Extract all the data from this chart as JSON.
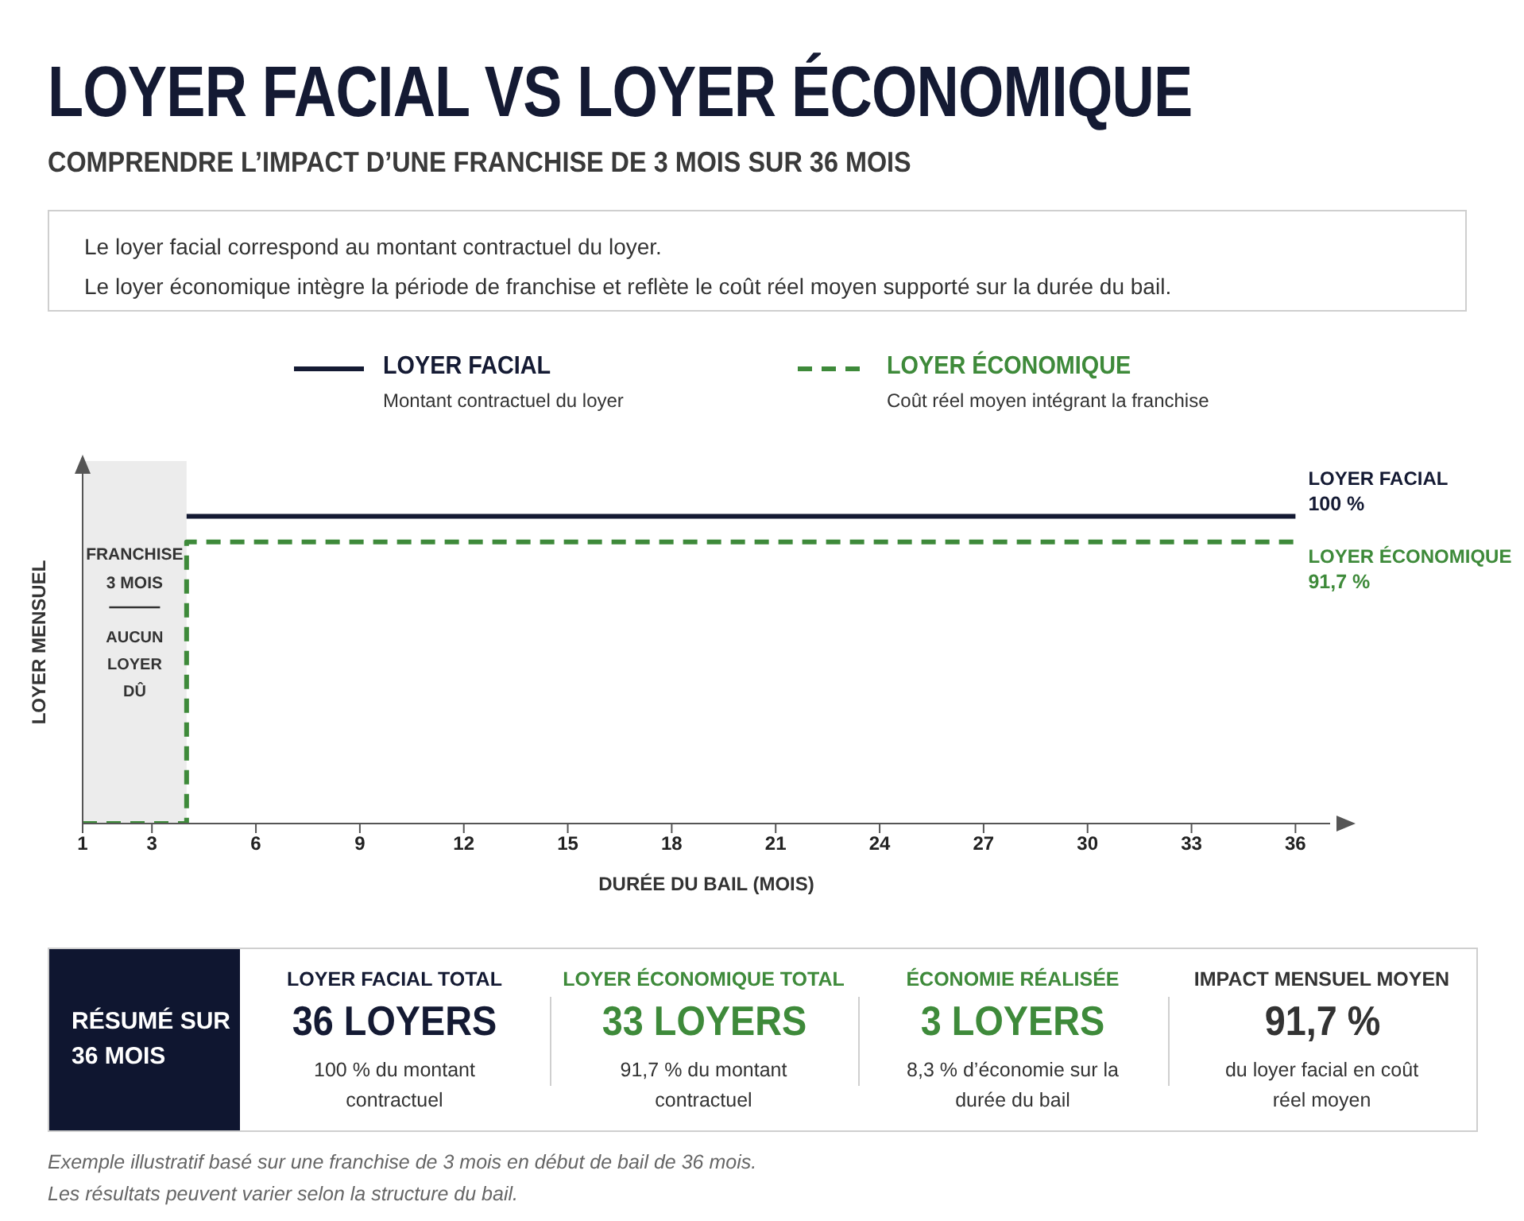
{
  "chart_data": [
    {
      "type": "other",
      "title": "LOYER FACIAL VS LOYER ÉCONOMIQUE",
      "subtitle": "COMPRENDRE L’IMPACT D’UNE FRANCHISE DE 3 MOIS SUR 36 MOIS",
      "annotations": [
        "Le loyer facial correspond au montant contractuel du loyer.",
        "Le loyer économique intègre la période de franchise et reflète le coût réel moyen supporté sur la durée du bail."
      ]
    },
    {
      "type": "line",
      "xlabel": "DURÉE DU BAIL (MOIS)",
      "ylabel": "LOYER MENSUEL",
      "xlim": [
        1,
        37
      ],
      "xticks": [
        1,
        3,
        6,
        9,
        12,
        15,
        18,
        21,
        24,
        27,
        30,
        33,
        36
      ],
      "ylim": [
        0,
        118
      ],
      "tick_labels": "x",
      "legend": "top",
      "series": [
        {
          "name": "LOYER FACIAL",
          "color": "#141a33",
          "line_style": "solid",
          "x": [
            4,
            36
          ],
          "values": [
            100,
            100
          ],
          "value_labels": [
            null,
            "100 %"
          ]
        },
        {
          "name": "LOYER ÉCONOMIQUE",
          "color": "#3e8a3a",
          "line_style": "dashed",
          "x": [
            1,
            4,
            4,
            36
          ],
          "values": [
            0,
            0,
            91.7,
            91.7
          ],
          "value_labels": [
            null,
            null,
            null,
            "91,7 %"
          ]
        }
      ],
      "bands": [
        {
          "axis": "x",
          "from": 1,
          "to": 4,
          "label": "FRANCHISE 3 MOIS",
          "color": "#ececec"
        }
      ],
      "annotations": [
        "Montant contractuel du loyer",
        "Coût réel moyen intégrant la franchise",
        "AUCUN LOYER DÛ",
        {
          "text": "LOYER FACIAL",
          "x": 36,
          "y": 100
        },
        {
          "text": "LOYER ÉCONOMIQUE",
          "x": 36,
          "y": 91.7
        }
      ]
    },
    {
      "type": "other",
      "title": "RÉSUMÉ SUR 36 MOIS",
      "colors": [
        "#141a33",
        "#3e8a3a",
        "#3e8a3a",
        "#333333"
      ],
      "annotations": [
        "LOYER FACIAL TOTAL",
        "36 LOYERS",
        "100 % du montant contractuel",
        "LOYER ÉCONOMIQUE TOTAL",
        "33 LOYERS",
        "91,7 % du montant contractuel",
        "ÉCONOMIE RÉALISÉE",
        "3 LOYERS",
        "8,3 % d’économie sur la durée du bail",
        "IMPACT MENSUEL MOYEN",
        "91,7 %",
        "du loyer facial en coût réel moyen",
        "Exemple illustratif basé sur une franchise de 3 mois en début de bail de 36 mois.",
        "Les résultats peuvent varier selon la structure du bail."
      ]
    }
  ]
}
